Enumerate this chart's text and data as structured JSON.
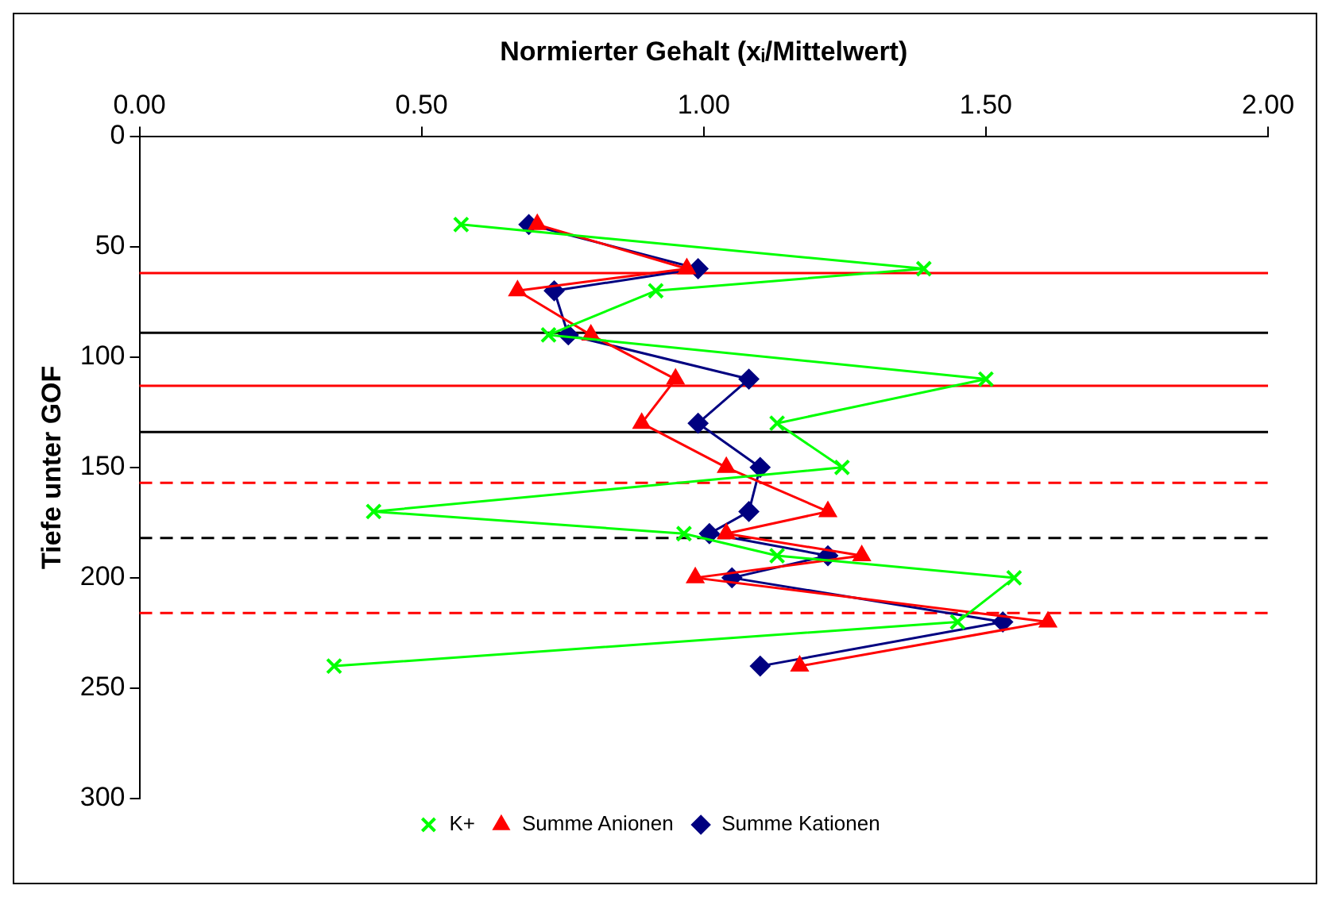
{
  "chart_data": {
    "type": "line",
    "orientation": "horizontal",
    "xlabel": "Normierter Gehalt (xᵢ/Mittelwert)",
    "ylabel": "Tiefe unter GOF",
    "xlim": [
      0,
      2
    ],
    "xticks": [
      {
        "value": 0,
        "label": "0.00"
      },
      {
        "value": 0.5,
        "label": "0.50"
      },
      {
        "value": 1,
        "label": "1.00"
      },
      {
        "value": 1.5,
        "label": "1.50"
      },
      {
        "value": 2,
        "label": "2.00"
      }
    ],
    "ylim": [
      300,
      0
    ],
    "yticks": [
      0,
      50,
      100,
      150,
      200,
      250,
      300
    ],
    "grid": false,
    "legend": "bottom",
    "line_style": "solid",
    "series": [
      {
        "name": "Summe Kationen",
        "color": "#000080",
        "marker": "diamond",
        "x": [
          40,
          60,
          70,
          90,
          110,
          130,
          150,
          170,
          180,
          190,
          200,
          220,
          240
        ],
        "values": [
          0.69,
          0.99,
          0.735,
          0.76,
          1.08,
          0.99,
          1.1,
          1.08,
          1.01,
          1.22,
          1.05,
          1.53,
          1.1
        ]
      },
      {
        "name": "Summe Anionen",
        "color": "#ff0000",
        "marker": "triangle",
        "x": [
          40,
          60,
          70,
          90,
          110,
          130,
          150,
          170,
          180,
          190,
          200,
          220,
          240
        ],
        "values": [
          0.705,
          0.97,
          0.67,
          0.8,
          0.95,
          0.89,
          1.04,
          1.22,
          1.04,
          1.28,
          0.985,
          1.61,
          1.17
        ]
      },
      {
        "name": "K+",
        "color": "#00ff00",
        "marker": "cross",
        "x": [
          40,
          60,
          70,
          90,
          110,
          130,
          150,
          170,
          180,
          190,
          200,
          220,
          240
        ],
        "values": [
          0.57,
          1.39,
          0.915,
          0.725,
          1.5,
          1.13,
          1.245,
          0.415,
          0.965,
          1.13,
          1.55,
          1.45,
          0.345
        ]
      }
    ],
    "ref_lines": [
      {
        "axis": "y",
        "value": 62,
        "color": "#ff0000",
        "line_style": "solid"
      },
      {
        "axis": "y",
        "value": 89,
        "color": "#000000",
        "line_style": "solid"
      },
      {
        "axis": "y",
        "value": 113,
        "color": "#ff0000",
        "line_style": "solid"
      },
      {
        "axis": "y",
        "value": 134,
        "color": "#000000",
        "line_style": "solid"
      },
      {
        "axis": "y",
        "value": 157,
        "color": "#ff0000",
        "line_style": "dashed"
      },
      {
        "axis": "y",
        "value": 182,
        "color": "#000000",
        "line_style": "dashed"
      },
      {
        "axis": "y",
        "value": 216,
        "color": "#ff0000",
        "line_style": "dashed"
      }
    ]
  }
}
